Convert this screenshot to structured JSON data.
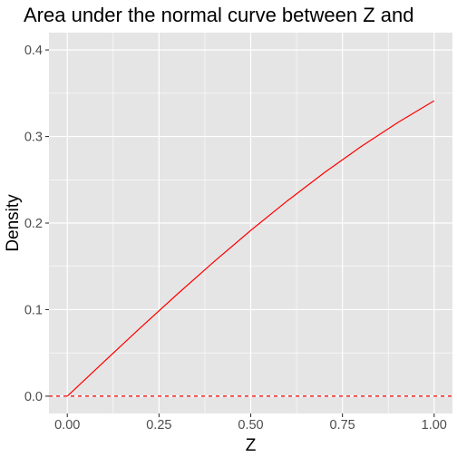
{
  "chart_data": {
    "type": "line",
    "title": "Area under the normal curve between Z and",
    "xlabel": "Z",
    "ylabel": "Density",
    "xlim": [
      -0.05,
      1.05
    ],
    "ylim": [
      -0.02,
      0.42
    ],
    "x_ticks": [
      0.0,
      0.25,
      0.5,
      0.75,
      1.0
    ],
    "x_tick_labels": [
      "0.00",
      "0.25",
      "0.50",
      "0.75",
      "1.00"
    ],
    "y_ticks": [
      0.0,
      0.1,
      0.2,
      0.3,
      0.4
    ],
    "y_tick_labels": [
      "0.0",
      "0.1",
      "0.2",
      "0.3",
      "0.4"
    ],
    "grid": true,
    "panel_background": "#e5e5e5",
    "series": [
      {
        "color": "#ff0000",
        "style": "solid",
        "x": [
          0.0,
          0.1,
          0.2,
          0.3,
          0.4,
          0.5,
          0.6,
          0.7,
          0.8,
          0.9,
          1.0
        ],
        "y": [
          0.0,
          0.0398,
          0.0793,
          0.1179,
          0.1554,
          0.1915,
          0.2257,
          0.258,
          0.2881,
          0.3159,
          0.3413
        ]
      }
    ],
    "reference_lines": [
      {
        "orientation": "horizontal",
        "y": 0.0,
        "color": "#ff0000",
        "style": "dashed"
      }
    ]
  }
}
